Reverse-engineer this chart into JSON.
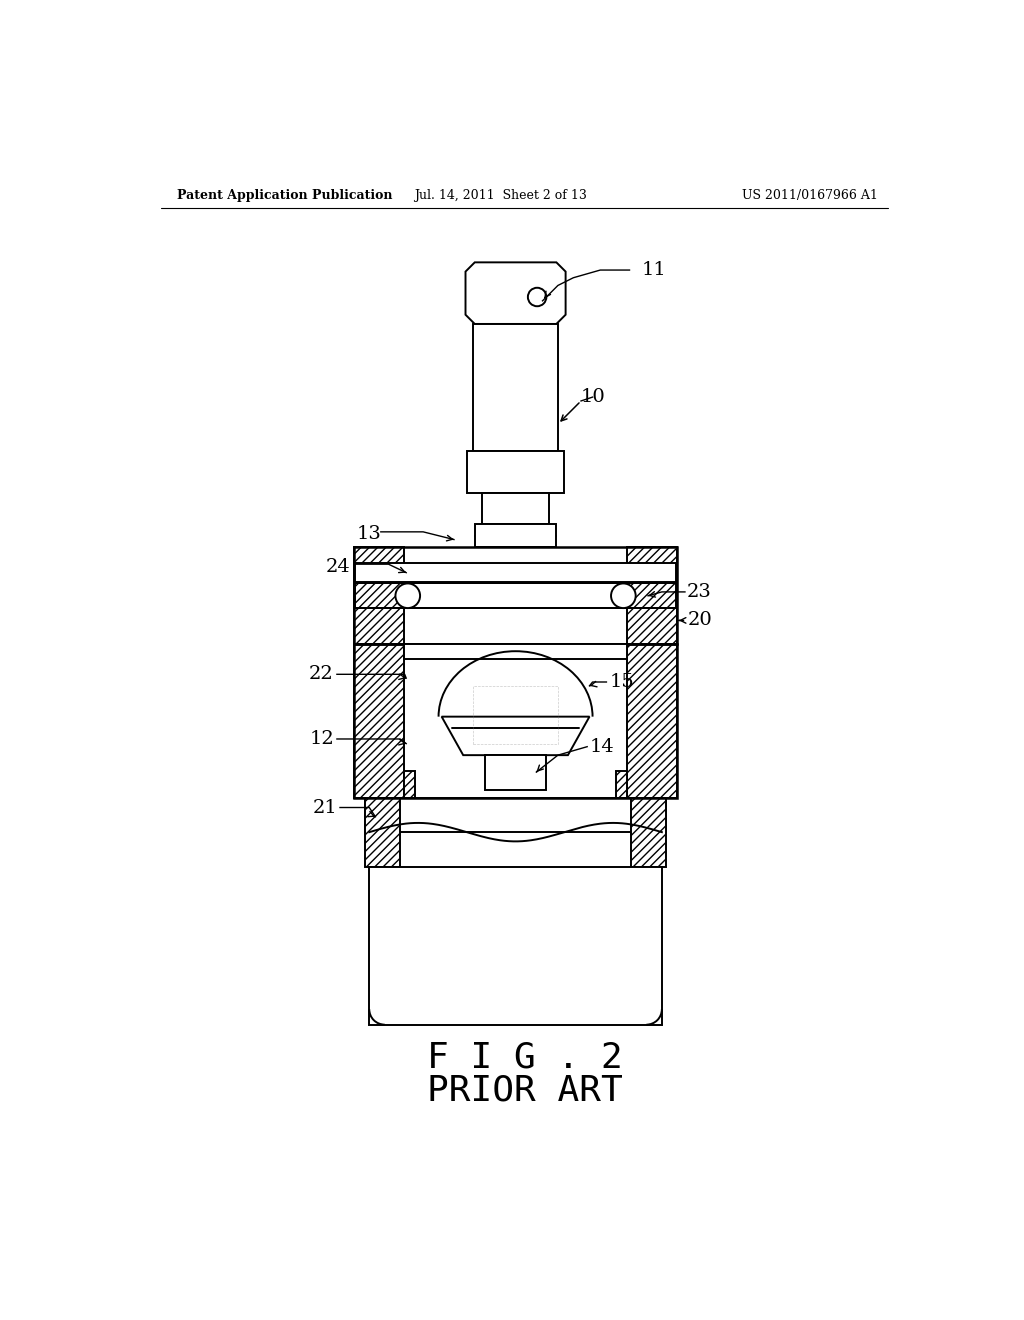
{
  "background_color": "#ffffff",
  "line_color": "#000000",
  "title_text": "F I G . 2",
  "subtitle_text": "PRIOR ART",
  "header_left": "Patent Application Publication",
  "header_mid": "Jul. 14, 2011  Sheet 2 of 13",
  "header_right": "US 2011/0167966 A1"
}
